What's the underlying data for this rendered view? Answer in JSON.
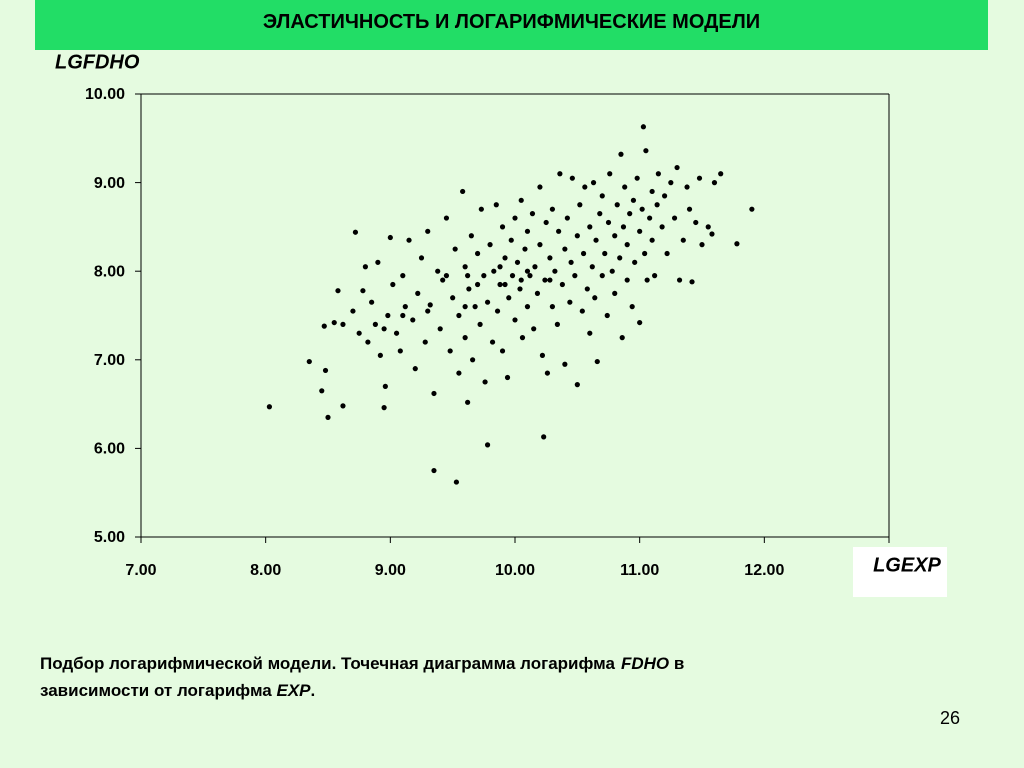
{
  "header": {
    "title": "ЭЛАСТИЧНОСТЬ И ЛОГАРИФМИЧЕСКИЕ МОДЕЛИ"
  },
  "chart_data": {
    "type": "scatter",
    "y_label": "LGFDHO",
    "x_label": "LGEXP",
    "color": "#000000",
    "xlim": [
      7,
      13
    ],
    "ylim": [
      5,
      10
    ],
    "xticks": [
      {
        "value": 7,
        "label": "7.00"
      },
      {
        "value": 8,
        "label": "8.00"
      },
      {
        "value": 9,
        "label": "9.00"
      },
      {
        "value": 10,
        "label": "10.00"
      },
      {
        "value": 11,
        "label": "11.00"
      },
      {
        "value": 12,
        "label": "12.00"
      }
    ],
    "yticks": [
      {
        "value": 5,
        "label": "5.00"
      },
      {
        "value": 6,
        "label": "6.00"
      },
      {
        "value": 7,
        "label": "7.00"
      },
      {
        "value": 8,
        "label": "8.00"
      },
      {
        "value": 9,
        "label": "9.00"
      },
      {
        "value": 10,
        "label": "10.00"
      }
    ],
    "x": [
      8.03,
      8.35,
      8.45,
      8.48,
      8.5,
      8.47,
      8.55,
      8.58,
      8.62,
      8.62,
      8.7,
      8.72,
      8.75,
      8.78,
      8.8,
      8.82,
      8.85,
      8.88,
      8.9,
      8.92,
      8.95,
      8.96,
      8.98,
      9.0,
      9.02,
      9.05,
      9.08,
      9.1,
      9.12,
      9.15,
      9.18,
      9.2,
      9.22,
      9.25,
      9.28,
      9.3,
      9.32,
      9.35,
      9.35,
      9.38,
      9.4,
      9.42,
      9.45,
      9.48,
      9.5,
      9.52,
      9.53,
      9.55,
      9.55,
      9.58,
      9.6,
      9.6,
      9.62,
      9.63,
      9.65,
      9.66,
      9.68,
      9.7,
      9.72,
      9.73,
      9.75,
      9.76,
      9.78,
      9.78,
      9.8,
      9.82,
      9.83,
      9.85,
      9.86,
      9.88,
      9.9,
      9.9,
      9.92,
      9.94,
      9.95,
      9.97,
      9.98,
      10.0,
      10.0,
      10.02,
      10.04,
      10.05,
      10.06,
      10.08,
      10.1,
      10.1,
      10.12,
      10.14,
      10.15,
      10.16,
      10.18,
      10.2,
      10.2,
      10.22,
      10.23,
      10.24,
      10.25,
      10.26,
      10.28,
      10.3,
      10.3,
      10.32,
      10.34,
      10.35,
      10.36,
      10.38,
      10.4,
      10.4,
      10.42,
      10.44,
      10.45,
      10.46,
      10.48,
      10.5,
      10.5,
      10.52,
      10.54,
      10.55,
      10.56,
      10.58,
      10.6,
      10.6,
      10.62,
      10.63,
      10.64,
      10.65,
      10.66,
      10.68,
      10.7,
      10.7,
      10.72,
      10.74,
      10.75,
      10.76,
      10.78,
      10.8,
      10.8,
      10.82,
      10.84,
      10.85,
      10.86,
      10.87,
      10.88,
      10.9,
      10.9,
      10.92,
      10.94,
      10.95,
      10.96,
      10.98,
      11.0,
      11.0,
      11.02,
      11.03,
      11.04,
      11.05,
      11.06,
      11.08,
      11.1,
      11.1,
      11.12,
      11.14,
      11.15,
      11.18,
      11.2,
      11.22,
      11.25,
      11.28,
      11.3,
      11.32,
      11.35,
      11.38,
      11.4,
      11.42,
      11.45,
      11.48,
      11.5,
      11.55,
      11.58,
      11.6,
      11.65,
      11.78,
      11.9,
      9.45,
      9.62,
      9.7,
      9.92,
      10.05,
      10.28,
      10.1,
      9.88,
      9.6,
      9.3,
      9.1,
      8.95
    ],
    "y": [
      6.47,
      6.98,
      6.65,
      6.88,
      6.35,
      7.38,
      7.42,
      7.78,
      6.48,
      7.4,
      7.55,
      8.44,
      7.3,
      7.78,
      8.05,
      7.2,
      7.65,
      7.4,
      8.1,
      7.05,
      6.46,
      6.7,
      7.5,
      8.38,
      7.85,
      7.3,
      7.1,
      7.95,
      7.6,
      8.35,
      7.45,
      6.9,
      7.75,
      8.15,
      7.2,
      8.45,
      7.62,
      5.75,
      6.62,
      8.0,
      7.35,
      7.9,
      8.6,
      7.1,
      7.7,
      8.25,
      5.62,
      6.85,
      7.5,
      8.9,
      7.25,
      8.05,
      6.52,
      7.8,
      8.4,
      7.0,
      7.6,
      8.2,
      7.4,
      8.7,
      7.95,
      6.75,
      6.04,
      7.65,
      8.3,
      7.2,
      8.0,
      8.75,
      7.55,
      7.85,
      8.5,
      7.1,
      8.15,
      6.8,
      7.7,
      8.35,
      7.95,
      8.6,
      7.45,
      8.1,
      7.8,
      8.8,
      7.25,
      8.25,
      7.6,
      8.45,
      7.95,
      8.65,
      7.35,
      8.05,
      7.75,
      8.95,
      8.3,
      7.05,
      6.13,
      7.9,
      8.55,
      6.85,
      8.15,
      7.6,
      8.7,
      8.0,
      7.4,
      8.45,
      9.1,
      7.85,
      8.25,
      6.95,
      8.6,
      7.65,
      8.1,
      9.05,
      7.95,
      8.4,
      6.72,
      8.75,
      7.55,
      8.2,
      8.95,
      7.8,
      8.5,
      7.3,
      8.05,
      9.0,
      7.7,
      8.35,
      6.98,
      8.65,
      7.95,
      8.85,
      8.2,
      7.5,
      8.55,
      9.1,
      8.0,
      8.4,
      7.75,
      8.75,
      8.15,
      9.32,
      7.25,
      8.5,
      8.95,
      7.9,
      8.3,
      8.65,
      7.6,
      8.8,
      8.1,
      9.05,
      8.45,
      7.42,
      8.7,
      9.63,
      8.2,
      9.36,
      7.9,
      8.6,
      8.9,
      8.35,
      7.95,
      8.75,
      9.1,
      8.5,
      8.85,
      8.2,
      9.0,
      8.6,
      9.17,
      7.9,
      8.35,
      8.95,
      8.7,
      7.88,
      8.55,
      9.05,
      8.3,
      8.5,
      8.42,
      9.0,
      9.1,
      8.31,
      8.7,
      7.95,
      7.95,
      7.85,
      7.85,
      7.9,
      7.9,
      8.0,
      8.05,
      7.6,
      7.55,
      7.5,
      7.35
    ]
  },
  "caption": [
    "Подбор логарифмической модели. Точечная диаграмма логарифма",
    "FDHO",
    "в",
    "зависимости от логарифма",
    "EXP",
    "."
  ],
  "page_number": "26"
}
